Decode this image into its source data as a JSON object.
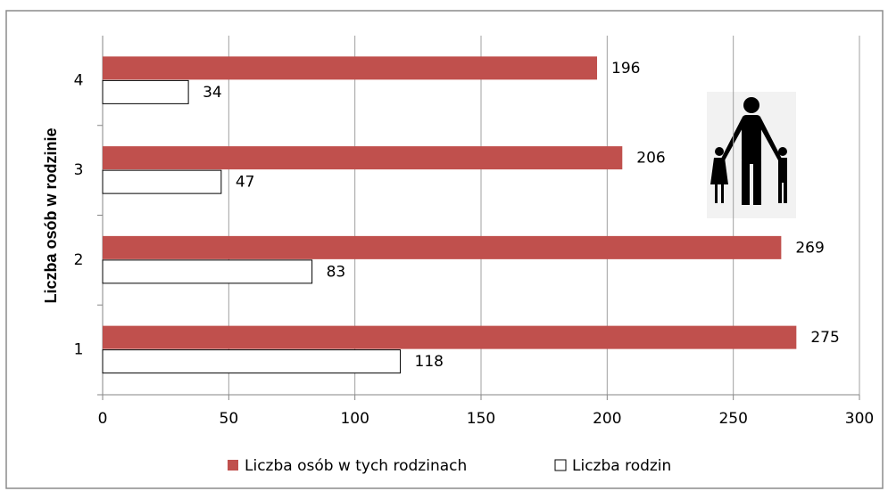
{
  "chart_data": {
    "type": "barh",
    "ylabel": "Liczba osób w rodzinie",
    "categories": [
      "1",
      "2",
      "3",
      "4"
    ],
    "series": [
      {
        "name": "Liczba osób w tych rodzinach",
        "color": "#c0504d",
        "values": [
          275,
          269,
          206,
          196
        ]
      },
      {
        "name": "Liczba rodzin",
        "color": "#ffffff",
        "edgecolor": "#000000",
        "values": [
          118,
          83,
          47,
          34
        ]
      }
    ],
    "xlim": [
      0,
      300
    ],
    "xticks": [
      0,
      50,
      100,
      150,
      200,
      250,
      300
    ],
    "grid": true,
    "legend": "bottom"
  }
}
